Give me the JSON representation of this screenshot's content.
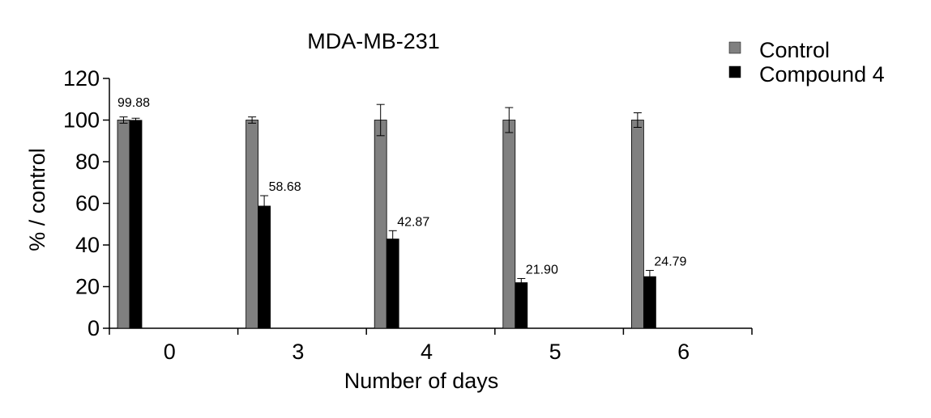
{
  "chart_data": {
    "type": "bar",
    "title": "MDA-MB-231",
    "xlabel": "Number of days",
    "ylabel": "% / control",
    "categories": [
      "0",
      "3",
      "4",
      "5",
      "6"
    ],
    "ylim": [
      0,
      120
    ],
    "yticks": [
      0,
      20,
      40,
      60,
      80,
      100,
      120
    ],
    "grid": false,
    "legend_position": "top-right",
    "series": [
      {
        "name": "Control",
        "color": "#808080",
        "values": [
          100,
          100,
          100,
          100,
          100
        ],
        "errors": [
          1.5,
          1.5,
          7.5,
          6,
          3.5
        ],
        "labels": [
          "",
          "",
          "",
          "",
          ""
        ]
      },
      {
        "name": "Compound 4",
        "color": "#000000",
        "values": [
          99.88,
          58.68,
          42.87,
          21.9,
          24.79
        ],
        "errors": [
          1,
          5,
          4,
          2,
          3
        ],
        "labels": [
          "99.88",
          "58.68",
          "42.87",
          "21.90",
          "24.79"
        ]
      }
    ]
  }
}
